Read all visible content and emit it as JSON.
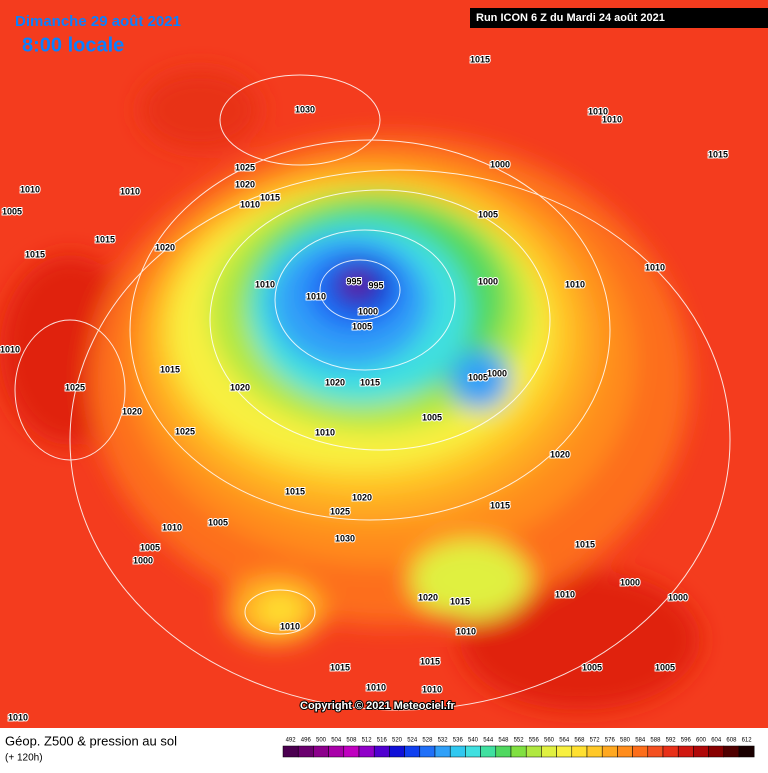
{
  "header": {
    "date": "Dimanche 29 août 2021",
    "time": "8:00 locale",
    "run": "Run ICON 6 Z du Mardi 24 août 2021"
  },
  "footer": {
    "copyright": "Copyright © 2021 Meteociel.fr",
    "product": "Géop. Z500 & pression au sol",
    "lead": "(+ 120h)"
  },
  "legend": {
    "ticks": [
      492,
      496,
      500,
      504,
      508,
      512,
      516,
      520,
      524,
      528,
      532,
      536,
      540,
      544,
      548,
      552,
      556,
      560,
      564,
      568,
      572,
      576,
      580,
      584,
      588,
      592,
      596,
      600,
      604,
      608,
      612
    ],
    "colors": [
      "#4b0050",
      "#6a006e",
      "#8c008c",
      "#a800a8",
      "#c000c0",
      "#9000c8",
      "#5000d0",
      "#1010d8",
      "#1040f0",
      "#2070f8",
      "#30a0f8",
      "#30c8f0",
      "#40e0e0",
      "#40e0a0",
      "#50d860",
      "#80e040",
      "#b0e840",
      "#e0f040",
      "#f8f040",
      "#ffe030",
      "#ffc828",
      "#ffa820",
      "#ff8c1c",
      "#fd6e1a",
      "#f45020",
      "#e83018",
      "#d01810",
      "#b00808",
      "#880000",
      "#500000",
      "#1a0000"
    ]
  },
  "pressure_labels": [
    1015,
    1030,
    1010,
    1010,
    1015,
    1000,
    1025,
    1020,
    1015,
    1010,
    1005,
    1010,
    1010,
    1005,
    1015,
    1020,
    1015,
    1010,
    1000,
    995,
    995,
    1010,
    1000,
    1005,
    1010,
    1010,
    1010,
    1015,
    1025,
    1020,
    1020,
    1015,
    1005,
    1000,
    1020,
    1025,
    1010,
    1005,
    1020,
    1015,
    1020,
    1025,
    1015,
    1010,
    1005,
    1005,
    1000,
    1030,
    1015,
    1000,
    1010,
    1020,
    1015,
    1010,
    1010,
    1000,
    1005,
    1015,
    1010,
    1015,
    1010,
    1005,
    1010
  ]
}
